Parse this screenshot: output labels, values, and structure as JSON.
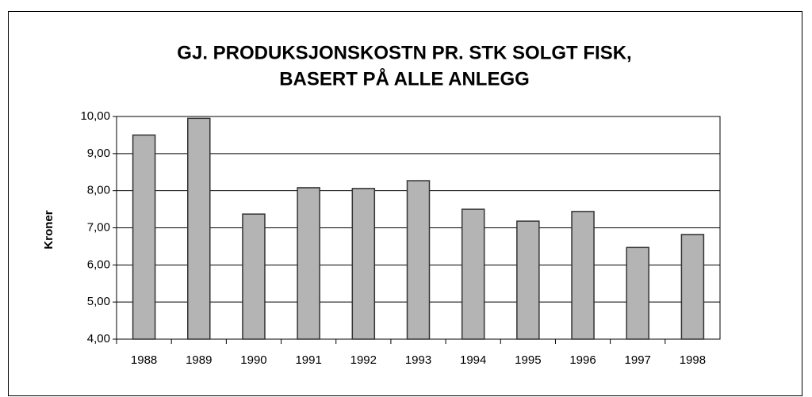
{
  "chart_data": {
    "type": "bar",
    "title": [
      "GJ. PRODUKSJONSKOSTN PR. STK SOLGT FISK,",
      "BASERT PÅ ALLE ANLEGG"
    ],
    "y_label": "Kroner",
    "categories": [
      "1988",
      "1989",
      "1990",
      "1991",
      "1992",
      "1993",
      "1994",
      "1995",
      "1996",
      "1997",
      "1998"
    ],
    "values": [
      9.5,
      9.95,
      7.37,
      8.08,
      8.06,
      8.27,
      7.5,
      7.18,
      7.44,
      6.47,
      6.82
    ],
    "color": "#b4b4b4",
    "ylim": [
      4,
      10
    ],
    "yticks": [
      {
        "value": 4,
        "label": "4,00"
      },
      {
        "value": 5,
        "label": "5,00"
      },
      {
        "value": 6,
        "label": "6,00"
      },
      {
        "value": 7,
        "label": "7,00"
      },
      {
        "value": 8,
        "label": "8,00"
      },
      {
        "value": 9,
        "label": "9,00"
      },
      {
        "value": 10,
        "label": "10,00"
      }
    ],
    "grid": true
  }
}
